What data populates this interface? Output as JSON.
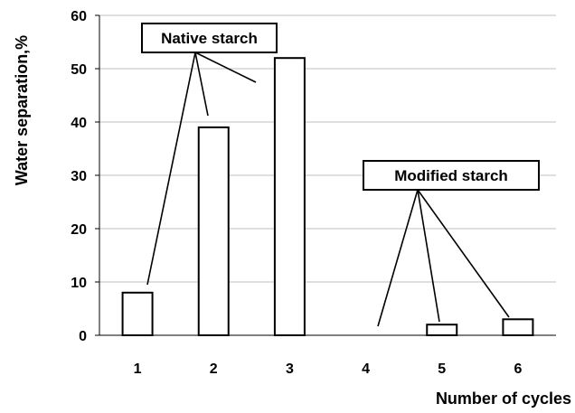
{
  "chart_data": {
    "type": "bar",
    "categories": [
      "1",
      "2",
      "3",
      "4",
      "5",
      "6"
    ],
    "values": [
      8,
      39,
      52,
      0,
      2,
      3
    ],
    "xlabel": "Number of cycles",
    "ylabel": "Water separation,%",
    "ylim": [
      0,
      60
    ],
    "yticks": [
      0,
      10,
      20,
      30,
      40,
      50,
      60
    ],
    "grid": true,
    "colors": {
      "bar_fill": "#ffffff",
      "bar_stroke": "#000000",
      "grid": "#bfbfbf"
    },
    "annotations": [
      {
        "text": "Native starch",
        "targets": [
          1,
          2,
          3
        ]
      },
      {
        "text": "Modified starch",
        "targets": [
          4,
          5,
          6
        ]
      }
    ]
  }
}
